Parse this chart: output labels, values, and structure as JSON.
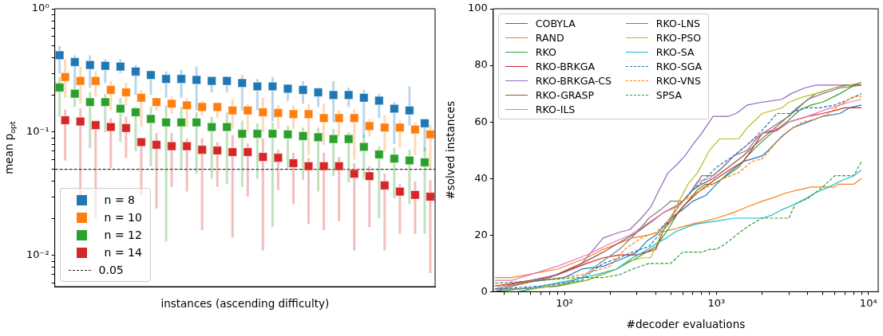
{
  "chart_data": [
    {
      "type": "scatter",
      "xlabel": "instances (ascending difficulty)",
      "ylabel": "mean p$_{opt}$",
      "log": "y",
      "marker": "square",
      "legend": "lower left",
      "tick_labels": "y",
      "categories": [
        null,
        null,
        null,
        null,
        null,
        null,
        null,
        null,
        null,
        null,
        null,
        null,
        null,
        null,
        null,
        null,
        null,
        null,
        null,
        null,
        null,
        null,
        null,
        null,
        null
      ],
      "ylim": [
        0.0056,
        1
      ],
      "yticks": [
        {
          "value": 0.006,
          "label": null
        },
        {
          "value": 0.007,
          "label": null
        },
        {
          "value": 0.008,
          "label": null
        },
        {
          "value": 0.009,
          "label": null
        },
        {
          "value": 0.01,
          "label": "10⁻²"
        },
        {
          "value": 0.02,
          "label": null
        },
        {
          "value": 0.03,
          "label": null
        },
        {
          "value": 0.04,
          "label": null
        },
        {
          "value": 0.05,
          "label": null
        },
        {
          "value": 0.06,
          "label": null
        },
        {
          "value": 0.07,
          "label": null
        },
        {
          "value": 0.08,
          "label": null
        },
        {
          "value": 0.09,
          "label": null
        },
        {
          "value": 0.1,
          "label": "10⁻¹"
        },
        {
          "value": 0.2,
          "label": null
        },
        {
          "value": 0.3,
          "label": null
        },
        {
          "value": 0.4,
          "label": null
        },
        {
          "value": 0.5,
          "label": null
        },
        {
          "value": 0.6,
          "label": null
        },
        {
          "value": 0.7,
          "label": null
        },
        {
          "value": 0.8,
          "label": null
        },
        {
          "value": 0.9,
          "label": null
        },
        {
          "value": 1,
          "label": "10⁰"
        }
      ],
      "ref_lines": [
        {
          "axis": "y",
          "value": 0.05,
          "label": "0.05",
          "color": "#333333",
          "line_style": "dashed"
        }
      ],
      "series": [
        {
          "name": "n = 8",
          "color": "#1f77b4",
          "values": [
            0.42,
            0.37,
            0.35,
            0.345,
            0.34,
            0.31,
            0.29,
            0.27,
            0.27,
            0.265,
            0.26,
            0.26,
            0.25,
            0.235,
            0.235,
            0.225,
            0.22,
            0.21,
            0.2,
            0.2,
            0.19,
            0.18,
            0.155,
            0.15,
            0.118
          ],
          "errors": [
            [
              0.3,
              0.5
            ],
            [
              0.24,
              0.42
            ],
            [
              0.23,
              0.42
            ],
            [
              0.25,
              0.39
            ],
            [
              0.3,
              0.39
            ],
            [
              0.2,
              0.35
            ],
            [
              0.2,
              0.32
            ],
            [
              0.19,
              0.31
            ],
            [
              0.19,
              0.32
            ],
            [
              0.15,
              0.34
            ],
            [
              0.21,
              0.28
            ],
            [
              0.21,
              0.28
            ],
            [
              0.15,
              0.29
            ],
            [
              0.15,
              0.27
            ],
            [
              0.122,
              0.28
            ],
            [
              0.18,
              0.24
            ],
            [
              0.17,
              0.26
            ],
            [
              0.16,
              0.23
            ],
            [
              0.12,
              0.26
            ],
            [
              0.16,
              0.23
            ],
            [
              0.09,
              0.22
            ],
            [
              0.13,
              0.205
            ],
            [
              0.08,
              0.175
            ],
            [
              0.113,
              0.235
            ],
            [
              0.07,
              0.118
            ]
          ]
        },
        {
          "name": "n = 10",
          "color": "#ff7f0e",
          "values": [
            0.28,
            0.26,
            0.26,
            0.22,
            0.21,
            0.19,
            0.175,
            0.17,
            0.165,
            0.16,
            0.16,
            0.15,
            0.15,
            0.145,
            0.143,
            0.14,
            0.14,
            0.13,
            0.13,
            0.13,
            0.112,
            0.109,
            0.109,
            0.105,
            0.096
          ],
          "errors": [
            [
              0.19,
              0.39
            ],
            [
              0.17,
              0.34
            ],
            [
              0.195,
              0.31
            ],
            [
              0.15,
              0.26
            ],
            [
              0.165,
              0.25
            ],
            [
              0.11,
              0.22
            ],
            [
              0.15,
              0.19
            ],
            [
              0.14,
              0.195
            ],
            [
              0.11,
              0.19
            ],
            [
              0.135,
              0.18
            ],
            [
              0.13,
              0.17
            ],
            [
              0.106,
              0.185
            ],
            [
              0.1,
              0.17
            ],
            [
              0.1,
              0.19
            ],
            [
              0.106,
              0.165
            ],
            [
              0.106,
              0.165
            ],
            [
              0.065,
              0.17
            ],
            [
              0.079,
              0.17
            ],
            [
              0.092,
              0.15
            ],
            [
              0.06,
              0.155
            ],
            [
              0.092,
              0.128
            ],
            [
              0.07,
              0.137
            ],
            [
              0.075,
              0.125
            ],
            [
              0.065,
              0.12
            ],
            [
              0.05,
              0.115
            ]
          ]
        },
        {
          "name": "n = 12",
          "color": "#2ca02c",
          "values": [
            0.23,
            0.205,
            0.175,
            0.175,
            0.155,
            0.145,
            0.128,
            0.12,
            0.12,
            0.12,
            0.11,
            0.11,
            0.097,
            0.097,
            0.097,
            0.096,
            0.093,
            0.091,
            0.088,
            0.088,
            0.076,
            0.066,
            0.061,
            0.059,
            0.057
          ],
          "errors": [
            [
              0.133,
              0.28
            ],
            [
              0.16,
              0.24
            ],
            [
              0.074,
              0.21
            ],
            [
              0.1,
              0.205
            ],
            [
              0.083,
              0.19
            ],
            [
              0.07,
              0.16
            ],
            [
              0.053,
              0.16
            ],
            [
              0.013,
              0.165
            ],
            [
              0.05,
              0.16
            ],
            [
              0.046,
              0.145
            ],
            [
              0.042,
              0.133
            ],
            [
              0.038,
              0.145
            ],
            [
              0.036,
              0.124
            ],
            [
              0.042,
              0.118
            ],
            [
              0.017,
              0.12
            ],
            [
              0.05,
              0.112
            ],
            [
              0.041,
              0.109
            ],
            [
              0.033,
              0.109
            ],
            [
              0.044,
              0.106
            ],
            [
              0.039,
              0.1
            ],
            [
              0.042,
              0.095
            ],
            [
              0.02,
              0.077
            ],
            [
              0.029,
              0.075
            ],
            [
              0.026,
              0.072
            ],
            [
              0.015,
              0.075
            ]
          ]
        },
        {
          "name": "n = 14",
          "color": "#d62728",
          "values": [
            0.125,
            0.122,
            0.114,
            0.11,
            0.108,
            0.083,
            0.079,
            0.077,
            0.077,
            0.072,
            0.071,
            0.069,
            0.069,
            0.063,
            0.062,
            0.056,
            0.053,
            0.053,
            0.053,
            0.046,
            0.044,
            0.037,
            0.033,
            0.031,
            0.03
          ],
          "errors": [
            [
              0.059,
              0.152
            ],
            [
              0.03,
              0.156
            ],
            [
              0.02,
              0.114
            ],
            [
              0.051,
              0.13
            ],
            [
              0.062,
              0.133
            ],
            [
              0.031,
              0.083
            ],
            [
              0.024,
              0.098
            ],
            [
              0.036,
              0.098
            ],
            [
              0.033,
              0.089
            ],
            [
              0.016,
              0.089
            ],
            [
              0.036,
              0.083
            ],
            [
              0.014,
              0.095
            ],
            [
              0.03,
              0.081
            ],
            [
              0.011,
              0.089
            ],
            [
              0.034,
              0.072
            ],
            [
              0.026,
              0.068
            ],
            [
              0.018,
              0.062
            ],
            [
              0.016,
              0.068
            ],
            [
              0.019,
              0.063
            ],
            [
              0.011,
              0.056
            ],
            [
              0.017,
              0.053
            ],
            [
              0.011,
              0.046
            ],
            [
              0.015,
              0.038
            ],
            [
              0.015,
              0.04
            ],
            [
              0.0072,
              0.041
            ]
          ]
        }
      ]
    },
    {
      "type": "line",
      "xlabel": "#decoder evaluations",
      "ylabel": "#solved instances",
      "log": "x",
      "marker": "none",
      "legend": "top left",
      "xlim": [
        34,
        11600
      ],
      "xticks": [
        {
          "value": 40,
          "label": null
        },
        {
          "value": 50,
          "label": null
        },
        {
          "value": 60,
          "label": null
        },
        {
          "value": 70,
          "label": null
        },
        {
          "value": 80,
          "label": null
        },
        {
          "value": 90,
          "label": null
        },
        {
          "value": 100,
          "label": "10²"
        },
        {
          "value": 200,
          "label": null
        },
        {
          "value": 300,
          "label": null
        },
        {
          "value": 400,
          "label": null
        },
        {
          "value": 500,
          "label": null
        },
        {
          "value": 600,
          "label": null
        },
        {
          "value": 700,
          "label": null
        },
        {
          "value": 800,
          "label": null
        },
        {
          "value": 900,
          "label": null
        },
        {
          "value": 1000,
          "label": "10³"
        },
        {
          "value": 2000,
          "label": null
        },
        {
          "value": 3000,
          "label": null
        },
        {
          "value": 4000,
          "label": null
        },
        {
          "value": 5000,
          "label": null
        },
        {
          "value": 6000,
          "label": null
        },
        {
          "value": 7000,
          "label": null
        },
        {
          "value": 8000,
          "label": null
        },
        {
          "value": 9000,
          "label": null
        },
        {
          "value": 10000,
          "label": "10⁴"
        }
      ],
      "ylim": [
        0,
        100
      ],
      "yticks": [
        0,
        20,
        40,
        60,
        80,
        100
      ],
      "series": [
        {
          "name": "COBYLA",
          "color": "#1f77b4",
          "x": [
            35,
            100,
            130,
            180,
            250,
            300,
            350,
            400,
            500,
            600,
            700,
            850,
            1000,
            1200,
            1500,
            2000,
            2200,
            2700,
            3200,
            4000,
            5000,
            6500,
            7500,
            9000
          ],
          "values": [
            2,
            5,
            8,
            9,
            12,
            14,
            18,
            20,
            26,
            29,
            32,
            34,
            38,
            42,
            46,
            48,
            50,
            55,
            58,
            60,
            62,
            63,
            65,
            66
          ]
        },
        {
          "name": "RAND",
          "color": "#ff7f0e",
          "x": [
            35,
            45,
            90,
            140,
            180,
            280,
            350,
            420,
            520,
            600,
            700,
            850,
            1000,
            1300,
            1600,
            2000,
            2300,
            2900,
            3500,
            4200,
            6000,
            6300,
            8000,
            9000
          ],
          "values": [
            5,
            5,
            8,
            12,
            15,
            19,
            20,
            21,
            22,
            23,
            24,
            25,
            26,
            28,
            30,
            32,
            33,
            35,
            36,
            37,
            37,
            38,
            38,
            40
          ]
        },
        {
          "name": "RKO",
          "color": "#2ca02c",
          "x": [
            35,
            50,
            90,
            140,
            220,
            300,
            400,
            480,
            560,
            650,
            750,
            850,
            950,
            1100,
            1400,
            1600,
            1900,
            2300,
            2900,
            3500,
            4200,
            5000,
            6500,
            7500,
            9000
          ],
          "values": [
            0,
            1,
            2,
            4,
            8,
            12,
            16,
            22,
            28,
            32,
            36,
            38,
            38,
            40,
            44,
            48,
            52,
            56,
            60,
            64,
            66,
            67,
            70,
            72,
            74
          ]
        },
        {
          "name": "RKO-BRKGA",
          "color": "#d62728",
          "x": [
            35,
            60,
            90,
            140,
            180,
            230,
            300,
            400,
            450,
            520,
            600,
            750,
            1000,
            1300,
            1500,
            1700,
            2000,
            2500,
            3000,
            4000,
            5000,
            6000,
            7000,
            9000
          ],
          "values": [
            2,
            4,
            6,
            10,
            12,
            13,
            13,
            15,
            22,
            26,
            30,
            35,
            40,
            44,
            46,
            50,
            56,
            57,
            60,
            62,
            63,
            64,
            65,
            65
          ]
        },
        {
          "name": "RKO-BRKGA-CS",
          "color": "#9467bd",
          "x": [
            35,
            50,
            90,
            130,
            180,
            230,
            270,
            320,
            370,
            420,
            480,
            550,
            620,
            700,
            800,
            950,
            1200,
            1350,
            1600,
            2000,
            2700,
            3100,
            3800,
            4500,
            9000
          ],
          "values": [
            1,
            3,
            6,
            10,
            19,
            21,
            22,
            26,
            30,
            36,
            42,
            45,
            48,
            52,
            56,
            62,
            62,
            63,
            66,
            67,
            68,
            70,
            72,
            73,
            73
          ]
        },
        {
          "name": "RKO-GRASP",
          "color": "#8c564b",
          "x": [
            35,
            45,
            80,
            130,
            180,
            240,
            300,
            380,
            450,
            530,
            600,
            700,
            800,
            950,
            1200,
            1500,
            1800,
            2200,
            2700,
            3400,
            4500,
            6000,
            7000,
            9000
          ],
          "values": [
            0,
            2,
            5,
            10,
            14,
            18,
            21,
            25,
            28,
            30,
            32,
            36,
            38,
            40,
            44,
            48,
            52,
            56,
            60,
            65,
            70,
            72,
            73,
            73
          ]
        },
        {
          "name": "RKO-ILS",
          "color": "#e377c2",
          "x": [
            35,
            45,
            90,
            140,
            200,
            270,
            350,
            450,
            550,
            650,
            750,
            900,
            1100,
            1300,
            1600,
            2000,
            2600,
            3000,
            4000,
            5000,
            6500,
            7500,
            9000
          ],
          "values": [
            4,
            4,
            9,
            13,
            17,
            20,
            24,
            28,
            30,
            34,
            39,
            40,
            44,
            48,
            52,
            56,
            58,
            60,
            62,
            64,
            66,
            67,
            68
          ]
        },
        {
          "name": "RKO-LNS",
          "color": "#7f7f7f",
          "x": [
            35,
            50,
            90,
            130,
            170,
            230,
            300,
            360,
            430,
            500,
            600,
            700,
            800,
            950,
            1100,
            1300,
            1600,
            1900,
            2300,
            3000,
            4000,
            5000,
            6500,
            9000
          ],
          "values": [
            1,
            1,
            2,
            5,
            10,
            15,
            21,
            26,
            29,
            32,
            32,
            36,
            41,
            41,
            44,
            48,
            50,
            55,
            58,
            62,
            68,
            70,
            72,
            73
          ]
        },
        {
          "name": "RKO-PSO",
          "color": "#bcbd22",
          "x": [
            50,
            80,
            140,
            220,
            270,
            330,
            370,
            430,
            520,
            580,
            650,
            750,
            900,
            1050,
            1400,
            1600,
            2000,
            2700,
            3000,
            3800,
            4500,
            6000,
            7500,
            9000
          ],
          "values": [
            0,
            2,
            4,
            8,
            11,
            12,
            12,
            20,
            28,
            33,
            38,
            42,
            50,
            54,
            54,
            58,
            63,
            65,
            67,
            69,
            70,
            72,
            73,
            74
          ]
        },
        {
          "name": "RKO-SA",
          "color": "#17becf",
          "x": [
            50,
            70,
            110,
            160,
            220,
            280,
            330,
            400,
            470,
            530,
            650,
            750,
            1000,
            1300,
            2000,
            2300,
            2700,
            3300,
            3900,
            4500,
            5500,
            6500,
            8000,
            9000
          ],
          "values": [
            0,
            2,
            4,
            6,
            8,
            12,
            14,
            17,
            19,
            21,
            23,
            24,
            25,
            26,
            26,
            27,
            29,
            31,
            33,
            35,
            37,
            39,
            41,
            43
          ]
        },
        {
          "name": "RKO-SGA",
          "color": "#1f77b4",
          "line_style": "dashed",
          "x": [
            35,
            70,
            130,
            150,
            180,
            230,
            280,
            360,
            450,
            560,
            700,
            850,
            1000,
            1300,
            1600,
            2000,
            2500,
            3000,
            3800,
            4800,
            6000,
            7500,
            9000
          ],
          "values": [
            1,
            2,
            4,
            7,
            10,
            12,
            14,
            16,
            22,
            30,
            36,
            40,
            44,
            48,
            52,
            57,
            63,
            63,
            65,
            65,
            66,
            68,
            70
          ]
        },
        {
          "name": "RKO-VNS",
          "color": "#ff7f0e",
          "line_style": "dashed",
          "x": [
            35,
            70,
            130,
            200,
            250,
            320,
            400,
            500,
            600,
            800,
            950,
            1100,
            1400,
            1700,
            2000,
            2500,
            3000,
            3700,
            4500,
            5500,
            6500,
            8000,
            9000
          ],
          "values": [
            2,
            4,
            6,
            9,
            15,
            19,
            21,
            26,
            32,
            36,
            38,
            40,
            42,
            46,
            47,
            53,
            57,
            60,
            61,
            63,
            66,
            69,
            69
          ]
        },
        {
          "name": "SPSA",
          "color": "#2ca02c",
          "line_style": "dashed",
          "x": [
            35,
            70,
            120,
            180,
            230,
            280,
            360,
            500,
            600,
            800,
            900,
            1000,
            1150,
            1350,
            1600,
            2000,
            3000,
            3300,
            4000,
            5000,
            6000,
            8000,
            9000
          ],
          "values": [
            3,
            4,
            5,
            5,
            6,
            8,
            10,
            10,
            14,
            14,
            15,
            15,
            17,
            20,
            23,
            26,
            26,
            31,
            33,
            37,
            41,
            41,
            46
          ]
        }
      ]
    }
  ]
}
